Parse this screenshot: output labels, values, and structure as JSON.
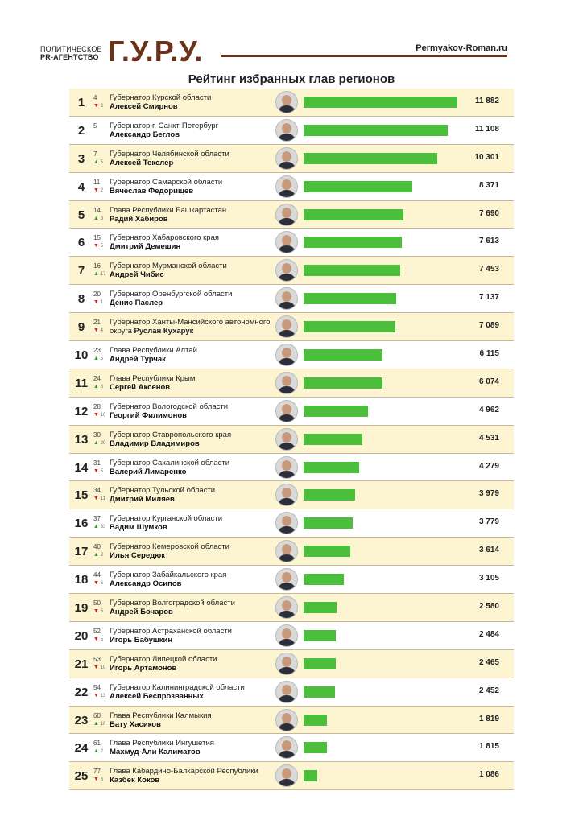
{
  "header": {
    "brand_line1": "ПОЛИТИЧЕСКОЕ",
    "brand_line2": "PR-АГЕНТСТВО",
    "brand_name": "Г.У.Р.У.",
    "site": "Permyakov-Roman.ru",
    "brand_color": "#6b3219"
  },
  "chart_data": {
    "type": "bar",
    "title": "Рейтинг избранных глав регионов",
    "bar_color": "#4bbf3c",
    "xlim": [
      0,
      11882
    ],
    "rows": [
      {
        "rank": "1",
        "prev": "4",
        "dir": "down",
        "delta": "3",
        "position": "Губернатор Курской области",
        "name": "Алексей Смирнов",
        "value": 11882,
        "value_label": "11 882"
      },
      {
        "rank": "2",
        "prev": "5",
        "dir": "",
        "delta": "",
        "position": "Губернатор г. Санкт-Петербург",
        "name": "Александр Беглов",
        "value": 11108,
        "value_label": "11 108"
      },
      {
        "rank": "3",
        "prev": "7",
        "dir": "up",
        "delta": "5",
        "position": "Губернатор Челябинской области",
        "name": "Алексей Текслер",
        "value": 10301,
        "value_label": "10 301"
      },
      {
        "rank": "4",
        "prev": "11",
        "dir": "down",
        "delta": "2",
        "position": "Губернатор Самарской области",
        "name": "Вячеслав Федорищев",
        "value": 8371,
        "value_label": "8 371"
      },
      {
        "rank": "5",
        "prev": "14",
        "dir": "up",
        "delta": "8",
        "position": "Глава Республики Башкартастан",
        "name": "Радий Хабиров",
        "value": 7690,
        "value_label": "7 690"
      },
      {
        "rank": "6",
        "prev": "15",
        "dir": "down",
        "delta": "5",
        "position": "Губернатор Хабаровского края",
        "name": "Дмитрий Демешин",
        "value": 7613,
        "value_label": "7 613"
      },
      {
        "rank": "7",
        "prev": "16",
        "dir": "up",
        "delta": "17",
        "position": "Губернатор Мурманской области",
        "name": "Андрей Чибис",
        "value": 7453,
        "value_label": "7 453"
      },
      {
        "rank": "8",
        "prev": "20",
        "dir": "down",
        "delta": "1",
        "position": "Губернатор Оренбургской области",
        "name": "Денис Паслер",
        "value": 7137,
        "value_label": "7 137"
      },
      {
        "rank": "9",
        "prev": "21",
        "dir": "down",
        "delta": "4",
        "position": "Губернатор Ханты-Мансийского автономного округа",
        "name": "Руслан Кухарук",
        "value": 7089,
        "value_label": "7 089"
      },
      {
        "rank": "10",
        "prev": "23",
        "dir": "up",
        "delta": "5",
        "position": "Глава Республики Алтай",
        "name": "Андрей Турчак",
        "value": 6115,
        "value_label": "6 115"
      },
      {
        "rank": "11",
        "prev": "24",
        "dir": "up",
        "delta": "8",
        "position": "Глава Республики Крым",
        "name": "Сергей Аксенов",
        "value": 6074,
        "value_label": "6 074"
      },
      {
        "rank": "12",
        "prev": "28",
        "dir": "down",
        "delta": "10",
        "position": "Губернатор Вологодской области",
        "name": "Георгий Филимонов",
        "value": 4962,
        "value_label": "4 962"
      },
      {
        "rank": "13",
        "prev": "30",
        "dir": "up",
        "delta": "20",
        "position": "Губернатор Ставропольского края",
        "name": "Владимир Владимиров",
        "value": 4531,
        "value_label": "4 531"
      },
      {
        "rank": "14",
        "prev": "31",
        "dir": "down",
        "delta": "5",
        "position": "Губернатор Сахалинской области",
        "name": "Валерий Лимаренко",
        "value": 4279,
        "value_label": "4 279"
      },
      {
        "rank": "15",
        "prev": "34",
        "dir": "down",
        "delta": "11",
        "position": "Губернатор Тульской области",
        "name": "Дмитрий Миляев",
        "value": 3979,
        "value_label": "3 979"
      },
      {
        "rank": "16",
        "prev": "37",
        "dir": "up",
        "delta": "33",
        "position": "Губернатор Курганской области",
        "name": "Вадим Шумков",
        "value": 3779,
        "value_label": "3 779"
      },
      {
        "rank": "17",
        "prev": "40",
        "dir": "up",
        "delta": "3",
        "position": "Губернатор Кемеровской области",
        "name": "Илья Середюк",
        "value": 3614,
        "value_label": "3 614"
      },
      {
        "rank": "18",
        "prev": "44",
        "dir": "down",
        "delta": "6",
        "position": "Губернатор Забайкальского края",
        "name": "Александр Осипов",
        "value": 3105,
        "value_label": "3 105"
      },
      {
        "rank": "19",
        "prev": "50",
        "dir": "down",
        "delta": "6",
        "position": "Губернатор Волгоградской области",
        "name": "Андрей Бочаров",
        "value": 2580,
        "value_label": "2 580"
      },
      {
        "rank": "20",
        "prev": "52",
        "dir": "down",
        "delta": "5",
        "position": "Губернатор Астраханской области",
        "name": "Игорь Бабушкин",
        "value": 2484,
        "value_label": "2 484"
      },
      {
        "rank": "21",
        "prev": "53",
        "dir": "down",
        "delta": "10",
        "position": "Губернатор Липецкой области",
        "name": "Игорь Артамонов",
        "value": 2465,
        "value_label": "2 465"
      },
      {
        "rank": "22",
        "prev": "54",
        "dir": "down",
        "delta": "13",
        "position": "Губернатор Калининградской области",
        "name": "Алексей Беспрозванных",
        "value": 2452,
        "value_label": "2 452"
      },
      {
        "rank": "23",
        "prev": "60",
        "dir": "up",
        "delta": "16",
        "position": "Глава Республики Калмыкия",
        "name": "Бату Хасиков",
        "value": 1819,
        "value_label": "1 819"
      },
      {
        "rank": "24",
        "prev": "61",
        "dir": "up",
        "delta": "2",
        "position": "Глава Республики Ингушетия",
        "name": "Махмуд-Али Калиматов",
        "value": 1815,
        "value_label": "1 815"
      },
      {
        "rank": "25",
        "prev": "77",
        "dir": "down",
        "delta": "8",
        "position": "Глава Кабардино-Балкарской Республики",
        "name": "Казбек Коков",
        "value": 1086,
        "value_label": "1 086"
      }
    ]
  }
}
